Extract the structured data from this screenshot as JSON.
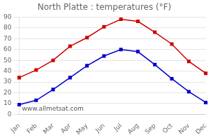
{
  "chart_data": {
    "type": "line",
    "title": "North Platte : temperatures (°F)",
    "categories": [
      "Jan",
      "Feb",
      "Mar",
      "Apr",
      "May",
      "Jun",
      "Jul",
      "Aug",
      "Sep",
      "Oct",
      "Nov",
      "Dec"
    ],
    "series": [
      {
        "color": "#cc0000",
        "values": [
          34,
          41,
          50,
          63,
          71,
          81,
          88,
          86,
          76,
          65,
          49,
          38
        ]
      },
      {
        "color": "#0000cc",
        "values": [
          9,
          13,
          23,
          34,
          45,
          54,
          60,
          58,
          46,
          33,
          21,
          11
        ]
      }
    ],
    "ylim": [
      0,
      90
    ],
    "yticks": [
      0,
      10,
      20,
      30,
      40,
      50,
      60,
      70,
      80,
      90
    ],
    "grid": "y",
    "marker": "square",
    "annotation": "www.allmetsat.com"
  }
}
